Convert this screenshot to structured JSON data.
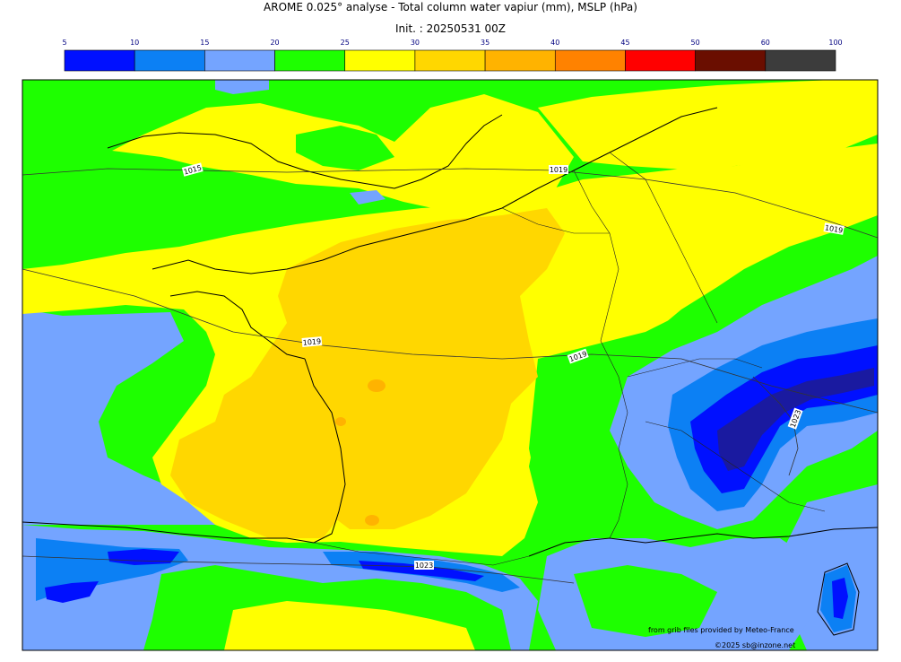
{
  "header": {
    "title": "AROME 0.025° analyse - Total column water vapiur (mm), MSLP (hPa)",
    "init": "Init. : 20250531 00Z"
  },
  "colorbar": {
    "ticks": [
      "5",
      "10",
      "15",
      "20",
      "25",
      "30",
      "35",
      "40",
      "45",
      "50",
      "60",
      "100"
    ],
    "colors": [
      "#0010ff",
      "#0c80f4",
      "#74a4ff",
      "#1eff00",
      "#ffff00",
      "#ffd700",
      "#ffb300",
      "#ff8200",
      "#ff0000",
      "#6a0e00",
      "#3c3c3c"
    ]
  },
  "map": {
    "palette": {
      "c5_10": "#0010ff",
      "c10_15": "#0c80f4",
      "c15_20": "#74a4ff",
      "c20_25": "#1eff00",
      "c25_30": "#ffff00",
      "c30_35": "#ffd700",
      "c35_40": "#ffb300",
      "c40_45": "#ff8200",
      "dark": "#1a1aa0"
    },
    "isobar_labels": [
      "1015",
      "1019",
      "1019",
      "1019",
      "1019",
      "1023",
      "1023"
    ],
    "credit": "from grib files provided by Meteo-France",
    "copyright": "©2025 sb@inzone.net"
  }
}
